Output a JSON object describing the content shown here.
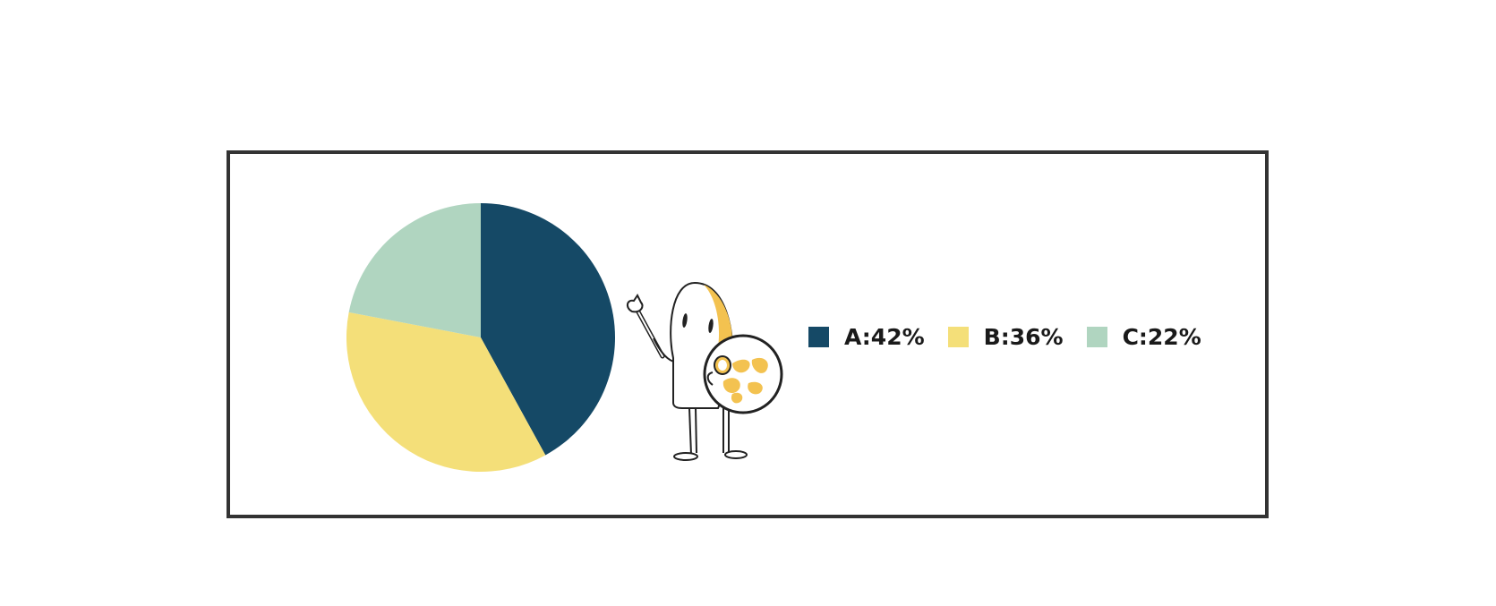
{
  "chart_data": {
    "type": "pie",
    "title": "",
    "start_angle_deg": 0,
    "direction": "clockwise",
    "legend_placement": "right",
    "slices": [
      {
        "label": "A",
        "value": 42,
        "display": "A:42%",
        "color": "#154966"
      },
      {
        "label": "B",
        "value": 36,
        "display": "B:36%",
        "color": "#F4DF79"
      },
      {
        "label": "C",
        "value": 22,
        "display": "C:22%",
        "color": "#B0D5C0"
      }
    ]
  },
  "decoration": {
    "icon": "painter-mascot-icon",
    "accent_color": "#F3C250"
  }
}
